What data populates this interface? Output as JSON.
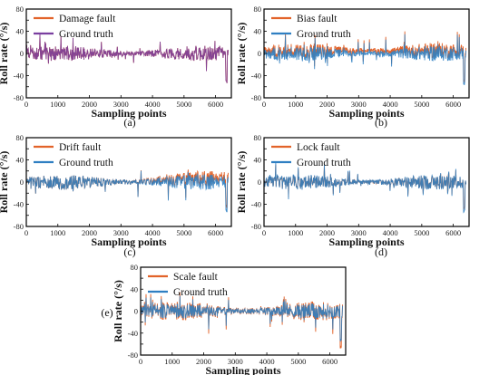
{
  "colors": {
    "fault": "#e2632a",
    "truth": "#2f7fc2",
    "damage_truth": "#7a3fa0",
    "frame": "#000000"
  },
  "chart_data": [
    {
      "type": "line",
      "panel_label": "(a)",
      "xlabel": "Sampling points",
      "ylabel": "Roll rate (°/s)",
      "xlim": [
        0,
        6500
      ],
      "ylim": [
        -80,
        80
      ],
      "xticks": [
        "0",
        "1000",
        "2000",
        "3000",
        "4000",
        "5000",
        "6000"
      ],
      "yticks": [
        "-80",
        "-60",
        "-40",
        "-20",
        "0",
        "20",
        "40",
        "60",
        "80"
      ],
      "legend_position": "top-left",
      "series": [
        {
          "name": "Damage fault"
        },
        {
          "name": "Ground truth"
        }
      ]
    },
    {
      "type": "line",
      "panel_label": "(b)",
      "xlabel": "Sampling points",
      "ylabel": "Roll rate (°/s)",
      "xlim": [
        0,
        6500
      ],
      "ylim": [
        -80,
        80
      ],
      "xticks": [
        "0",
        "1000",
        "2000",
        "3000",
        "4000",
        "5000",
        "6000"
      ],
      "yticks": [
        "-80",
        "-60",
        "-40",
        "-20",
        "0",
        "20",
        "40",
        "60",
        "80"
      ],
      "legend_position": "top-left",
      "series": [
        {
          "name": "Bias fault"
        },
        {
          "name": "Ground truth"
        }
      ]
    },
    {
      "type": "line",
      "panel_label": "(c)",
      "xlabel": "Sampling points",
      "ylabel": "Roll rate (°/s)",
      "xlim": [
        0,
        6500
      ],
      "ylim": [
        -80,
        80
      ],
      "xticks": [
        "0",
        "1000",
        "2000",
        "3000",
        "4000",
        "5000",
        "6000"
      ],
      "yticks": [
        "-80",
        "-60",
        "-40",
        "-20",
        "0",
        "20",
        "40",
        "60",
        "80"
      ],
      "legend_position": "top-left",
      "series": [
        {
          "name": "Drift fault"
        },
        {
          "name": "Ground truth"
        }
      ]
    },
    {
      "type": "line",
      "panel_label": "(d)",
      "xlabel": "Sampling points",
      "ylabel": "Roll rate (°/s)",
      "xlim": [
        0,
        6500
      ],
      "ylim": [
        -80,
        80
      ],
      "xticks": [
        "0",
        "1000",
        "2000",
        "3000",
        "4000",
        "5000",
        "6000"
      ],
      "yticks": [
        "-80",
        "-60",
        "-40",
        "-20",
        "0",
        "20",
        "40",
        "60",
        "80"
      ],
      "legend_position": "top-left",
      "series": [
        {
          "name": "Lock fault"
        },
        {
          "name": "Ground truth"
        }
      ]
    },
    {
      "type": "line",
      "panel_label": "(e)",
      "xlabel": "Sampling points",
      "ylabel": "Roll rate (°/s)",
      "xlim": [
        0,
        6500
      ],
      "ylim": [
        -80,
        80
      ],
      "xticks": [
        "0",
        "1000",
        "2000",
        "3000",
        "4000",
        "5000",
        "6000"
      ],
      "yticks": [
        "-80",
        "-60",
        "-40",
        "-20",
        "0",
        "20",
        "40",
        "60",
        "80"
      ],
      "legend_position": "top-left",
      "series": [
        {
          "name": "Scale fault"
        },
        {
          "name": "Ground truth"
        }
      ]
    }
  ]
}
